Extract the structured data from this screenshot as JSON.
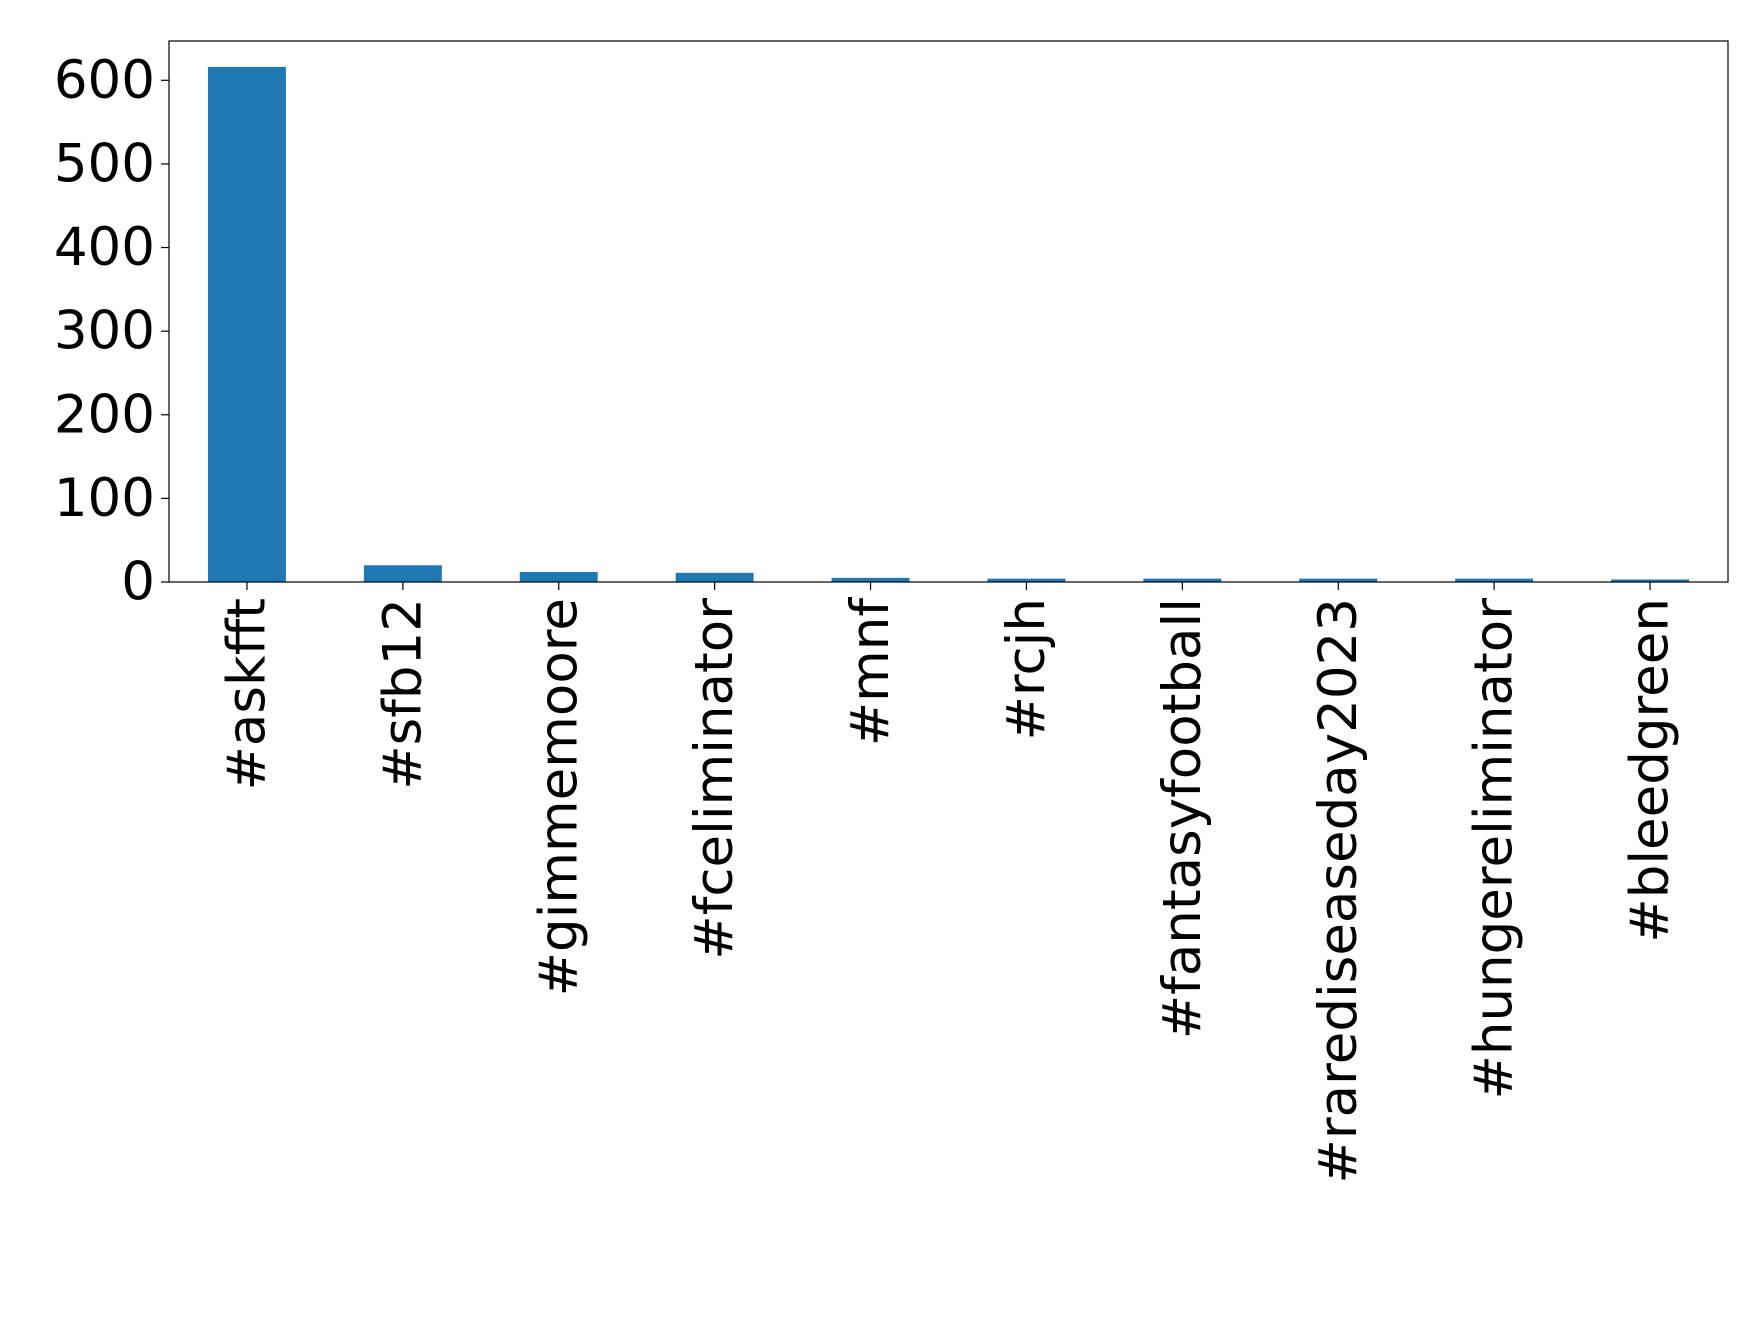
{
  "chart_data": {
    "type": "bar",
    "categories": [
      "#askfft",
      "#sfb12",
      "#gimmemoore",
      "#fceliminator",
      "#mnf",
      "#rcjh",
      "#fantasyfootball",
      "#rarediseaseday2023",
      "#hungereliminator",
      "#bleedgreen"
    ],
    "values": [
      616,
      20,
      12,
      11,
      5,
      4,
      4,
      4,
      4,
      3
    ],
    "color": "#1f77b4",
    "ylim": [
      0,
      647
    ],
    "yticks": [
      0,
      100,
      200,
      300,
      400,
      500,
      600
    ],
    "grid": false
  }
}
